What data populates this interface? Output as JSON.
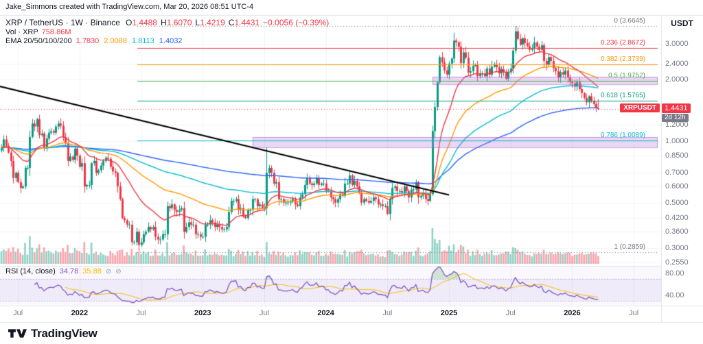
{
  "attribution": "Jake_Simmons created with TradingView.com, Mar 20, 2026 08:51 UTC-4",
  "logo_text": "TradingView",
  "colors": {
    "up": "#089981",
    "down": "#f23645",
    "vol_up": "rgba(8,153,129,0.45)",
    "vol_down": "rgba(242,54,69,0.45)",
    "grid": "rgba(42,46,57,0.06)",
    "frame": "#e0e3eb",
    "text_dark": "#131722",
    "text_gray": "#787b86",
    "rsi": "#7e57c2",
    "rsi_ma": "#f0c000",
    "rsi_band_fill": "rgba(126,87,194,0.08)",
    "rsi_band_line": "rgba(126,87,194,0.45)",
    "rsi_overbought_fill": "rgba(76,175,80,0.25)",
    "rsi_oversold_fill": "rgba(255,82,82,0.2)",
    "box_fill": "rgba(187,134,220,0.32)",
    "box_border": "rgba(150,85,195,0.5)",
    "trendline": "#000000"
  },
  "legend": {
    "title": "XRP / TetherUS · 1W · Binance",
    "ohlc_parts": [
      {
        "k": "O",
        "v": "1.4488"
      },
      {
        "k": "H",
        "v": "1.6070"
      },
      {
        "k": "L",
        "v": "1.4219"
      },
      {
        "k": "C",
        "v": "1.4431"
      }
    ],
    "change": "−0.0056 (−0.39%)",
    "volume_label": "Vol · XRP",
    "volume_value": "758.86M",
    "ema_label": "EMA 20/50/100/200",
    "ema_values": [
      "1.7830",
      "2.0088",
      "1.8113",
      "1.4032"
    ],
    "ema_colors": [
      "#f23645",
      "#ff9800",
      "#00bcd4",
      "#2962ff"
    ]
  },
  "rsi_legend": {
    "label": "RSI (14, close)",
    "value": "34.78",
    "ma_value": "35.88",
    "hide_icon": "⊘",
    "menu_icon": "⊘"
  },
  "price_axis": {
    "title": "USDT",
    "labels": [
      {
        "text": "3.0000",
        "value": 3.0
      },
      {
        "text": "2.4000",
        "value": 2.4
      },
      {
        "text": "2.0000",
        "value": 2.0
      },
      {
        "text": "1.2000",
        "value": 1.2
      },
      {
        "text": "1.0000",
        "value": 1.0
      },
      {
        "text": "0.8500",
        "value": 0.85
      },
      {
        "text": "0.7000",
        "value": 0.7
      },
      {
        "text": "0.6000",
        "value": 0.6
      },
      {
        "text": "0.5000",
        "value": 0.5
      },
      {
        "text": "0.4200",
        "value": 0.42
      },
      {
        "text": "0.3600",
        "value": 0.36
      },
      {
        "text": "0.3000",
        "value": 0.3
      },
      {
        "text": "0.2550",
        "value": 0.255
      }
    ],
    "badge": {
      "symbol": "XRPUSDT",
      "price": "1.4431",
      "countdown": "2d 12h"
    }
  },
  "rsi_axis": {
    "labels": [
      {
        "text": "80.00",
        "value": 80
      },
      {
        "text": "40.00",
        "value": 40
      }
    ]
  },
  "time_axis": {
    "ticks": [
      {
        "label": "Jul",
        "week": 7,
        "bold": false
      },
      {
        "label": "2022",
        "week": 33,
        "bold": true
      },
      {
        "label": "Jul",
        "week": 59,
        "bold": false
      },
      {
        "label": "2023",
        "week": 85,
        "bold": true
      },
      {
        "label": "Jul",
        "week": 111,
        "bold": false
      },
      {
        "label": "2024",
        "week": 137,
        "bold": true
      },
      {
        "label": "Jul",
        "week": 163,
        "bold": false
      },
      {
        "label": "2025",
        "week": 189,
        "bold": true
      },
      {
        "label": "Jul",
        "week": 215,
        "bold": false
      },
      {
        "label": "2026",
        "week": 241,
        "bold": true
      },
      {
        "label": "Jul",
        "week": 267,
        "bold": false
      }
    ]
  },
  "chart_data": {
    "type": "candlestick",
    "symbol": "XRPUSDT",
    "exchange": "Binance",
    "timeframe": "1W",
    "scale": "log",
    "last_price": 1.4431,
    "last_candle": {
      "open": 1.4488,
      "high": 1.607,
      "low": 1.4219,
      "close": 1.4431,
      "change": -0.0056,
      "change_pct": -0.39
    },
    "volume_latest": "758.86M",
    "ema_periods": [
      20,
      50,
      100,
      200
    ],
    "rsi": {
      "period": 14,
      "source": "close",
      "value": 34.78,
      "ma_value": 35.88,
      "band": [
        30,
        70
      ]
    },
    "weekly_closes": [
      0.93,
      1.02,
      0.95,
      0.88,
      0.8,
      0.66,
      0.7,
      0.63,
      0.59,
      0.6,
      0.74,
      0.74,
      1.05,
      1.22,
      1.18,
      1.28,
      1.07,
      1.09,
      0.93,
      1.03,
      1.1,
      1.12,
      1.1,
      1.18,
      1.22,
      1.19,
      1.05,
      0.98,
      0.8,
      0.84,
      0.81,
      0.92,
      0.85,
      0.75,
      0.78,
      0.6,
      0.61,
      0.61,
      0.78,
      0.8,
      0.7,
      0.72,
      0.76,
      0.8,
      0.83,
      0.82,
      0.75,
      0.71,
      0.7,
      0.6,
      0.52,
      0.42,
      0.41,
      0.39,
      0.39,
      0.32,
      0.32,
      0.36,
      0.31,
      0.32,
      0.35,
      0.36,
      0.38,
      0.37,
      0.38,
      0.34,
      0.33,
      0.33,
      0.35,
      0.35,
      0.48,
      0.47,
      0.49,
      0.46,
      0.45,
      0.46,
      0.47,
      0.36,
      0.38,
      0.4,
      0.39,
      0.39,
      0.35,
      0.35,
      0.34,
      0.34,
      0.39,
      0.39,
      0.41,
      0.4,
      0.38,
      0.39,
      0.38,
      0.37,
      0.37,
      0.38,
      0.45,
      0.51,
      0.51,
      0.52,
      0.46,
      0.47,
      0.43,
      0.42,
      0.46,
      0.46,
      0.52,
      0.52,
      0.48,
      0.49,
      0.47,
      0.47,
      0.7,
      0.74,
      0.7,
      0.62,
      0.63,
      0.52,
      0.52,
      0.5,
      0.5,
      0.5,
      0.51,
      0.52,
      0.49,
      0.48,
      0.53,
      0.55,
      0.61,
      0.66,
      0.62,
      0.61,
      0.62,
      0.66,
      0.61,
      0.62,
      0.62,
      0.57,
      0.57,
      0.53,
      0.52,
      0.5,
      0.52,
      0.55,
      0.54,
      0.62,
      0.62,
      0.68,
      0.61,
      0.64,
      0.6,
      0.56,
      0.5,
      0.52,
      0.51,
      0.5,
      0.51,
      0.53,
      0.52,
      0.49,
      0.49,
      0.48,
      0.48,
      0.44,
      0.52,
      0.59,
      0.6,
      0.57,
      0.57,
      0.56,
      0.6,
      0.57,
      0.53,
      0.58,
      0.58,
      0.63,
      0.53,
      0.54,
      0.55,
      0.52,
      0.51,
      0.55,
      1.12,
      1.47,
      1.94,
      2.58,
      2.43,
      2.22,
      2.12,
      2.4,
      2.54,
      3.11,
      3.05,
      2.9,
      2.41,
      2.72,
      2.56,
      2.17,
      2.2,
      2.34,
      2.37,
      2.08,
      2.13,
      2.14,
      2.08,
      2.27,
      2.12,
      2.32,
      2.38,
      2.3,
      2.15,
      2.25,
      2.18,
      2.02,
      2.18,
      2.27,
      2.78,
      3.45,
      3.17,
      2.97,
      3.19,
      3.02,
      2.92,
      2.8,
      2.84,
      3.05,
      2.9,
      2.8,
      2.95,
      2.47,
      2.36,
      2.58,
      2.47,
      2.28,
      2.2,
      2.05,
      2.18,
      2.12,
      2.22,
      2.05,
      1.95,
      1.92,
      1.85,
      1.95,
      1.8,
      1.72,
      1.63,
      1.55,
      1.66,
      1.58,
      1.52,
      1.45,
      1.4431
    ],
    "overrides": {
      "58": {
        "l": 0.287
      },
      "112": {
        "h": 0.93
      },
      "182": {
        "l": 0.54
      },
      "191": {
        "h": 3.4
      },
      "217": {
        "h": 3.6645
      },
      "252": {
        "o": 1.4488,
        "h": 1.607,
        "l": 1.4219
      }
    },
    "fib_levels": [
      {
        "label": "0 (3.6645)",
        "value": 3.6645,
        "color": "#787b86",
        "dotted": true
      },
      {
        "label": "0.236 (2.8672)",
        "value": 2.8672,
        "color": "#f23645",
        "dotted": false
      },
      {
        "label": "0.382 (2.3739)",
        "value": 2.3739,
        "color": "#ff9800",
        "dotted": false
      },
      {
        "label": "0.5 (1.9752)",
        "value": 1.9752,
        "color": "#4caf50",
        "dotted": false
      },
      {
        "label": "0.618 (1.5765)",
        "value": 1.5765,
        "color": "#089981",
        "dotted": false
      },
      {
        "label": "0.786 (1.0089)",
        "value": 1.0089,
        "color": "#00bcd4",
        "dotted": false
      },
      {
        "label": "1 (0.2859)",
        "value": 0.2859,
        "color": "#787b86",
        "dotted": true
      }
    ],
    "trendline": {
      "from_week": -1,
      "from_price": 1.86,
      "to_week": 189,
      "to_price": 0.545
    },
    "boxes": [
      {
        "from_week": 106,
        "top": 1.047,
        "bottom": 0.932
      },
      {
        "from_week": 182,
        "top": 2.068,
        "bottom": 1.899
      }
    ]
  }
}
